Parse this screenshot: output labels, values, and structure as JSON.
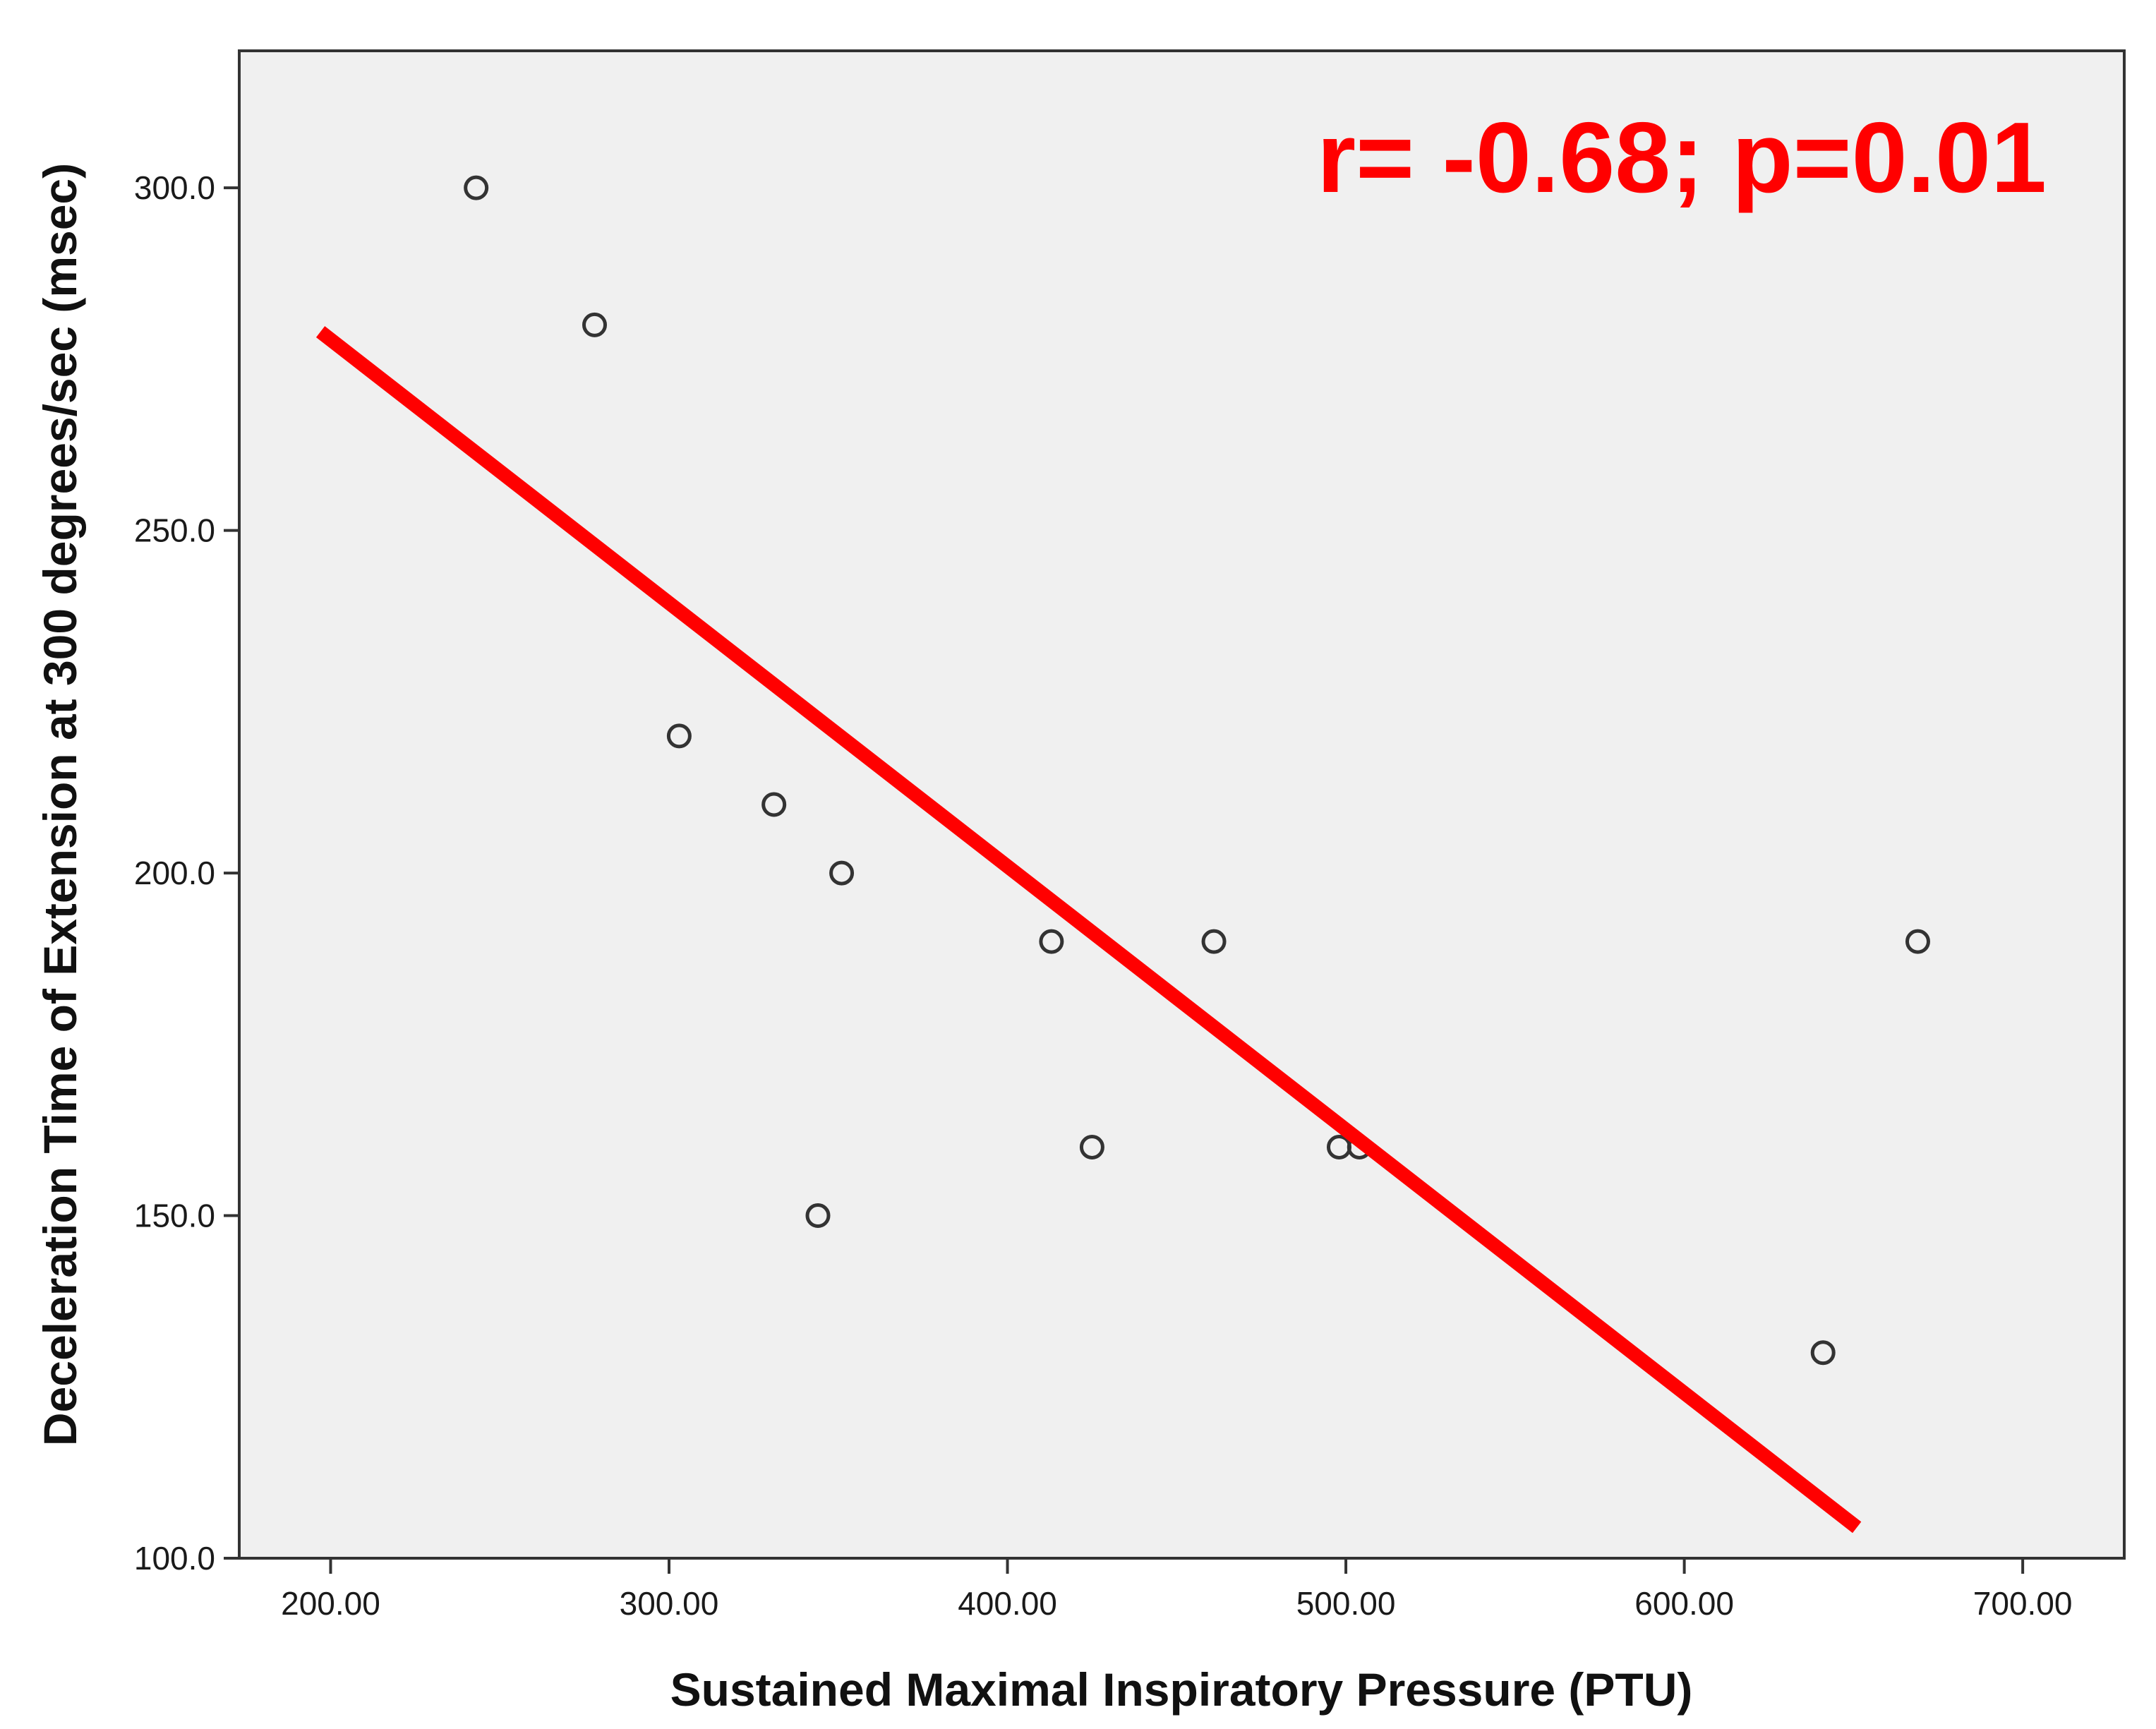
{
  "chart_data": {
    "type": "scatter",
    "title": "",
    "xlabel": "Sustained Maximal Inspiratory Pressure (PTU)",
    "ylabel": "Deceleration Time of Extension at 300 degrees/sec (msec)",
    "xlim": [
      173,
      730
    ],
    "ylim": [
      100,
      320
    ],
    "x_ticks": [
      200,
      300,
      400,
      500,
      600,
      700
    ],
    "x_tick_labels": [
      "200.00",
      "300.00",
      "400.00",
      "500.00",
      "600.00",
      "700.00"
    ],
    "y_ticks": [
      100,
      150,
      200,
      250,
      300
    ],
    "y_tick_labels": [
      "100.0",
      "150.0",
      "200.0",
      "250.0",
      "300.0"
    ],
    "grid": false,
    "legend": "none",
    "colors": {
      "plot_background": "#f0f0f0",
      "marker_stroke": "#333333",
      "fit_line": "#ff0000",
      "annotation": "#ff0000",
      "frame": "#333333"
    },
    "series": [
      {
        "points": [
          {
            "x": 243,
            "y": 300
          },
          {
            "x": 278,
            "y": 280
          },
          {
            "x": 303,
            "y": 220
          },
          {
            "x": 331,
            "y": 210
          },
          {
            "x": 351,
            "y": 200
          },
          {
            "x": 413,
            "y": 190
          },
          {
            "x": 461,
            "y": 190
          },
          {
            "x": 669,
            "y": 190
          },
          {
            "x": 425,
            "y": 160
          },
          {
            "x": 498,
            "y": 160
          },
          {
            "x": 504,
            "y": 160
          },
          {
            "x": 344,
            "y": 150
          },
          {
            "x": 641,
            "y": 130
          }
        ]
      }
    ],
    "fit_line": {
      "x": [
        197,
        651
      ],
      "y": [
        279,
        104.5
      ]
    },
    "annotation": "r= -0.68; p=0.01"
  }
}
